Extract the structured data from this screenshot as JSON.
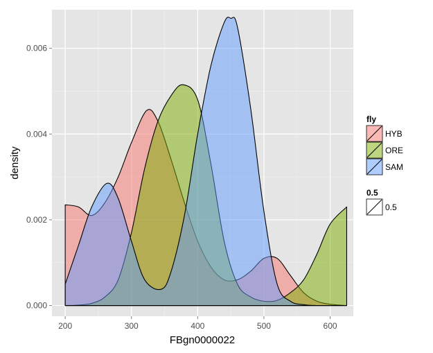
{
  "chart_data": {
    "type": "area",
    "title": "",
    "xlabel": "FBgn0000022",
    "ylabel": "density",
    "xlim": [
      180,
      635
    ],
    "ylim": [
      -0.00025,
      0.0069
    ],
    "x_ticks": [
      200,
      300,
      400,
      500,
      600
    ],
    "x_tick_labels": [
      "200",
      "300",
      "400",
      "500",
      "600"
    ],
    "y_ticks": [
      0,
      0.002,
      0.004,
      0.006
    ],
    "y_tick_labels": [
      "0.000",
      "0.002",
      "0.004",
      "0.006"
    ],
    "grid": true,
    "fill_alpha": 0.5,
    "legend_position": "right",
    "legend": {
      "fill_title": "fly",
      "alpha_title": "0.5",
      "alpha_entries": [
        "0.5"
      ]
    },
    "series": [
      {
        "name": "HYB",
        "color": "#F8766D",
        "x": [
          200,
          220,
          240,
          260,
          280,
          300,
          323,
          340,
          360,
          380,
          400,
          420,
          440,
          460,
          480,
          500,
          520,
          540,
          560,
          580,
          600,
          625
        ],
        "y": [
          0.00235,
          0.0023,
          0.0021,
          0.0024,
          0.003,
          0.0038,
          0.00455,
          0.0043,
          0.0034,
          0.0024,
          0.0015,
          0.0009,
          0.0006,
          0.0006,
          0.0008,
          0.0011,
          0.0011,
          0.0007,
          0.0003,
          0.0001,
          3e-05,
          0.0
        ]
      },
      {
        "name": "ORE",
        "color": "#7CAE00",
        "x": [
          200,
          220,
          240,
          260,
          280,
          300,
          320,
          340,
          360,
          378,
          400,
          420,
          440,
          460,
          480,
          500,
          520,
          540,
          560,
          580,
          600,
          625
        ],
        "y": [
          0.0,
          1e-05,
          5e-05,
          0.0002,
          0.0006,
          0.0017,
          0.0032,
          0.0043,
          0.0049,
          0.00515,
          0.0048,
          0.0033,
          0.0015,
          0.0005,
          0.0002,
          0.0001,
          0.00012,
          0.0003,
          0.0006,
          0.0012,
          0.0019,
          0.0023
        ]
      },
      {
        "name": "SAM",
        "color": "#619CFF",
        "x": [
          200,
          220,
          240,
          263,
          280,
          300,
          320,
          345,
          360,
          380,
          400,
          420,
          440,
          450,
          460,
          480,
          500,
          520,
          540,
          560,
          580,
          600,
          625
        ],
        "y": [
          0.0005,
          0.0014,
          0.0023,
          0.00285,
          0.0025,
          0.0015,
          0.0006,
          0.00038,
          0.0008,
          0.0021,
          0.004,
          0.0056,
          0.0066,
          0.0067,
          0.0065,
          0.0046,
          0.0022,
          0.0005,
          0.0001,
          2e-05,
          0.0,
          0.0,
          0.0
        ]
      }
    ]
  }
}
